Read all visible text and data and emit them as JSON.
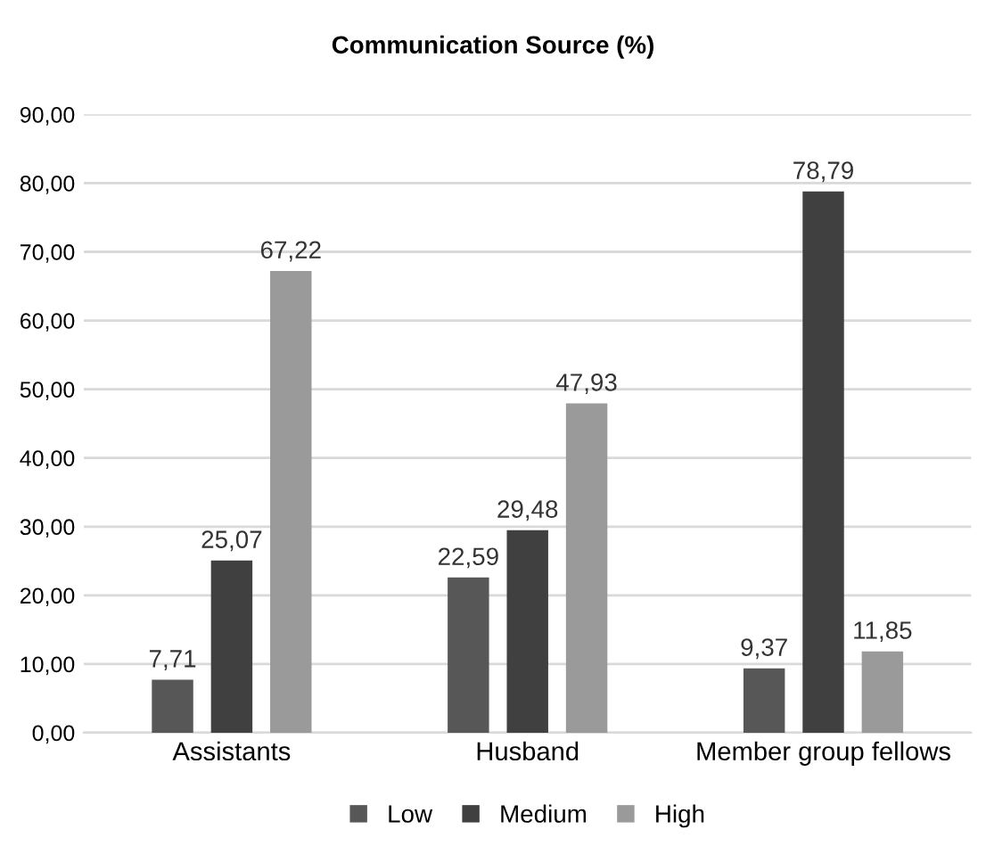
{
  "chart_data": {
    "type": "bar",
    "title": "Communication Source (%)",
    "categories": [
      "Assistants",
      "Husband",
      "Member group fellows"
    ],
    "series": [
      {
        "name": "Low",
        "color": "#575757",
        "values": [
          7.71,
          22.59,
          9.37
        ],
        "value_labels": [
          "7,71",
          "22,59",
          "9,37"
        ]
      },
      {
        "name": "Medium",
        "color": "#404040",
        "values": [
          25.07,
          29.48,
          78.79
        ],
        "value_labels": [
          "25,07",
          "29,48",
          "78,79"
        ]
      },
      {
        "name": "High",
        "color": "#9a9a9a",
        "values": [
          67.22,
          47.93,
          11.85
        ],
        "value_labels": [
          "67,22",
          "47,93",
          "11,85"
        ]
      }
    ],
    "ylim": [
      0,
      90
    ],
    "yticks": [
      {
        "value": 0,
        "label": "0,00"
      },
      {
        "value": 10,
        "label": "10,00"
      },
      {
        "value": 20,
        "label": "20,00"
      },
      {
        "value": 30,
        "label": "30,00"
      },
      {
        "value": 40,
        "label": "40,00"
      },
      {
        "value": 50,
        "label": "50,00"
      },
      {
        "value": 60,
        "label": "60,00"
      },
      {
        "value": 70,
        "label": "70,00"
      },
      {
        "value": 80,
        "label": "80,00"
      },
      {
        "value": 90,
        "label": "90,00"
      }
    ],
    "grid": "y",
    "legend": "bottom"
  }
}
